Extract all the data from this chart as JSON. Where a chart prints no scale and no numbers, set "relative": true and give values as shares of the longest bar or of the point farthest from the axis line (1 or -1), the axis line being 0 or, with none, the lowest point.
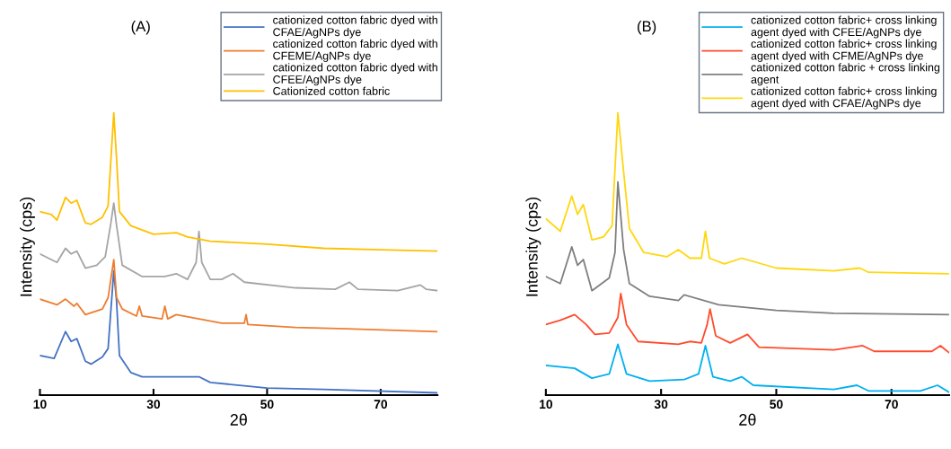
{
  "chart_data": [
    {
      "type": "line",
      "title": "(A)",
      "xlabel": "2θ",
      "ylabel": "Intensity (cps)",
      "relative": true,
      "xlim": [
        10,
        80
      ],
      "xticks": [
        10,
        30,
        50,
        70
      ],
      "legend": "top right",
      "tick_labels": "x",
      "grid": false,
      "marker": "none",
      "line_style": "solid",
      "series": [
        {
          "name": "cationized cotton fabric dyed with\nCFAE/AgNPs dye",
          "color": "#4472c4",
          "x": [
            10,
            12.5,
            14.5,
            15.5,
            16.5,
            18,
            19,
            21,
            22,
            23,
            23.5,
            24,
            26,
            28,
            34,
            38,
            40,
            50,
            60,
            80
          ],
          "values": [
            0.14,
            0.13,
            0.225,
            0.19,
            0.2,
            0.12,
            0.11,
            0.135,
            0.165,
            0.44,
            0.33,
            0.14,
            0.08,
            0.065,
            0.065,
            0.065,
            0.045,
            0.025,
            0.02,
            0.008
          ]
        },
        {
          "name": "cationized cotton fabric dyed with\nCFEME/AgNPs dye",
          "color": "#ed7d31",
          "x": [
            10,
            13,
            14.5,
            16,
            16.5,
            18,
            21,
            22,
            23,
            23.5,
            24.5,
            27,
            27.5,
            28,
            31.5,
            32,
            32.5,
            34,
            38,
            42,
            46,
            46.3,
            46.6,
            55,
            64,
            80
          ],
          "values": [
            0.34,
            0.32,
            0.34,
            0.315,
            0.325,
            0.285,
            0.305,
            0.345,
            0.48,
            0.345,
            0.305,
            0.28,
            0.315,
            0.28,
            0.27,
            0.315,
            0.27,
            0.285,
            0.27,
            0.255,
            0.255,
            0.285,
            0.25,
            0.24,
            0.235,
            0.225
          ]
        },
        {
          "name": "cationized cotton fabric dyed with\nCFEE/AgNPs dye",
          "color": "#a5a5a5",
          "x": [
            10,
            13,
            14.5,
            15.5,
            16.5,
            18,
            20,
            21.5,
            22.5,
            23,
            23.5,
            24.5,
            28,
            32,
            34,
            36,
            37.5,
            38,
            38.5,
            40,
            42,
            44,
            46,
            55,
            62,
            64.5,
            66,
            73,
            77,
            78,
            80
          ],
          "values": [
            0.5,
            0.47,
            0.52,
            0.5,
            0.51,
            0.45,
            0.46,
            0.49,
            0.61,
            0.68,
            0.6,
            0.46,
            0.42,
            0.42,
            0.43,
            0.41,
            0.47,
            0.58,
            0.47,
            0.41,
            0.41,
            0.43,
            0.4,
            0.38,
            0.375,
            0.4,
            0.375,
            0.37,
            0.39,
            0.375,
            0.37
          ]
        },
        {
          "name": "Cationized cotton fabric",
          "color": "#ffc000",
          "x": [
            10,
            12,
            13,
            14.5,
            15.5,
            16.5,
            18,
            19,
            21,
            22,
            22.5,
            23,
            23.5,
            24,
            26,
            30,
            34,
            36,
            40,
            50,
            60,
            70,
            80
          ],
          "values": [
            0.65,
            0.64,
            0.62,
            0.7,
            0.68,
            0.69,
            0.61,
            0.605,
            0.63,
            0.67,
            0.835,
            1.0,
            0.835,
            0.65,
            0.6,
            0.57,
            0.575,
            0.56,
            0.545,
            0.535,
            0.52,
            0.515,
            0.51
          ]
        }
      ]
    },
    {
      "type": "line",
      "title": "(B)",
      "xlabel": "2θ",
      "ylabel": "Intensity (cps)",
      "relative": true,
      "xlim": [
        10,
        80
      ],
      "xticks": [
        10,
        30,
        50,
        70
      ],
      "legend": "top right",
      "tick_labels": "x",
      "grid": false,
      "marker": "none",
      "line_style": "solid",
      "series": [
        {
          "name": "cationized cotton fabric+ cross linking\nagent dyed with CFEE/AgNPs dye",
          "color": "#00b0f0",
          "x": [
            10,
            15,
            18,
            21,
            22.5,
            24,
            28,
            34,
            36.5,
            37.7,
            39,
            42,
            44,
            46,
            60,
            64,
            66,
            75,
            78,
            80
          ],
          "values": [
            0.105,
            0.095,
            0.06,
            0.075,
            0.18,
            0.075,
            0.05,
            0.055,
            0.075,
            0.175,
            0.065,
            0.05,
            0.065,
            0.035,
            0.02,
            0.035,
            0.015,
            0.015,
            0.035,
            0.01
          ]
        },
        {
          "name": "cationized cotton fabric+ cross linking\nagent dyed with CFME/AgNPs dye",
          "color": "#ff4b2b",
          "x": [
            10,
            12.5,
            15,
            17,
            18.5,
            21,
            22.5,
            23,
            24,
            26,
            33,
            35,
            37,
            38,
            38.5,
            39.5,
            42,
            45,
            47,
            60,
            65,
            67,
            77,
            78.5,
            80
          ],
          "values": [
            0.25,
            0.265,
            0.285,
            0.25,
            0.215,
            0.22,
            0.275,
            0.36,
            0.25,
            0.19,
            0.18,
            0.19,
            0.185,
            0.25,
            0.305,
            0.21,
            0.185,
            0.215,
            0.17,
            0.16,
            0.175,
            0.155,
            0.155,
            0.175,
            0.15
          ]
        },
        {
          "name": "cationized cotton fabric + cross linking\nagent",
          "color": "#7f7f7f",
          "x": [
            10,
            12.5,
            14.5,
            15.5,
            16.5,
            18,
            21,
            22,
            22.5,
            23.5,
            24.5,
            28,
            33,
            34,
            40,
            50,
            60,
            80
          ],
          "values": [
            0.42,
            0.395,
            0.525,
            0.46,
            0.48,
            0.37,
            0.415,
            0.505,
            0.755,
            0.515,
            0.395,
            0.35,
            0.335,
            0.355,
            0.32,
            0.3,
            0.29,
            0.285
          ]
        },
        {
          "name": "cationized cotton fabric+ cross linking\nagent dyed with CFAE/AgNPs dye",
          "color": "#ffd70f",
          "x": [
            10,
            12.5,
            14.5,
            15.5,
            16.5,
            18,
            20,
            21.5,
            22.5,
            23.5,
            24.5,
            27,
            31,
            33,
            35,
            37,
            37.7,
            38.4,
            41,
            44,
            50,
            60,
            64.5,
            66,
            80
          ],
          "values": [
            0.625,
            0.58,
            0.705,
            0.64,
            0.675,
            0.55,
            0.56,
            0.6,
            1.0,
            0.79,
            0.59,
            0.505,
            0.49,
            0.515,
            0.485,
            0.485,
            0.58,
            0.485,
            0.465,
            0.485,
            0.45,
            0.44,
            0.45,
            0.435,
            0.43
          ]
        }
      ]
    }
  ]
}
